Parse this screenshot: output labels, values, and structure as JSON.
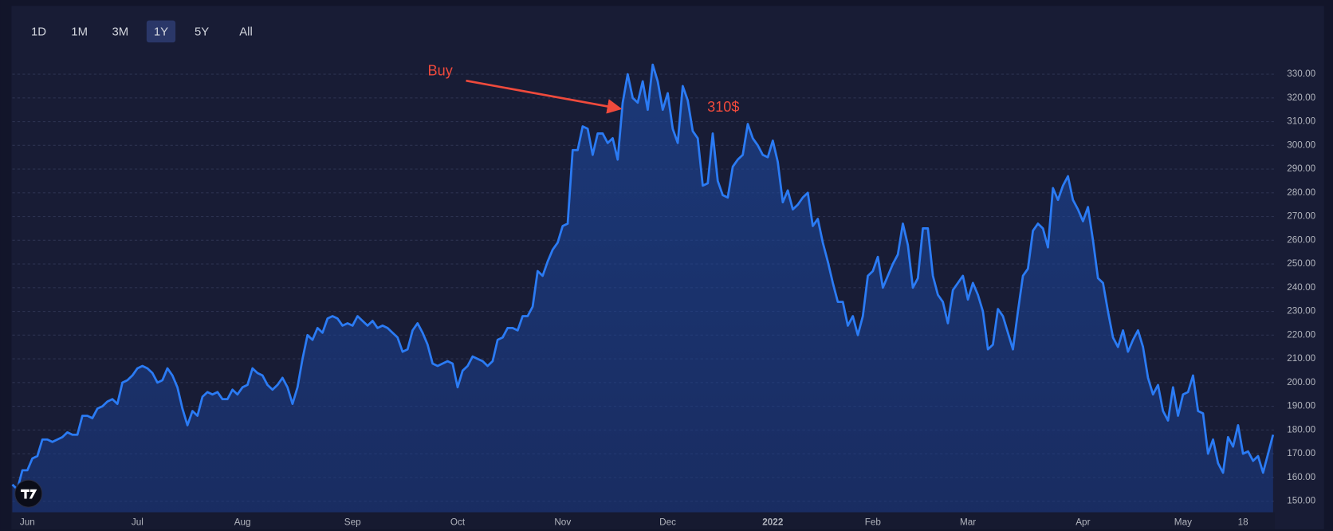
{
  "chart_data": {
    "type": "area",
    "range_buttons": {
      "options": [
        "1D",
        "1M",
        "3M",
        "1Y",
        "5Y",
        "All"
      ],
      "selected": 3
    },
    "annotations": [
      {
        "text": "Buy"
      },
      {
        "text": "310$"
      }
    ],
    "color": "#2b7bf4",
    "grid": true,
    "ylim": [
      145.3,
      338
    ],
    "yticks": [
      {
        "value": 150,
        "label": "150.00"
      },
      {
        "value": 160,
        "label": "160.00"
      },
      {
        "value": 170,
        "label": "170.00"
      },
      {
        "value": 180,
        "label": "180.00"
      },
      {
        "value": 190,
        "label": "190.00"
      },
      {
        "value": 200,
        "label": "200.00"
      },
      {
        "value": 210,
        "label": "210.00"
      },
      {
        "value": 220,
        "label": "220.00"
      },
      {
        "value": 230,
        "label": "230.00"
      },
      {
        "value": 240,
        "label": "240.00"
      },
      {
        "value": 250,
        "label": "250.00"
      },
      {
        "value": 260,
        "label": "260.00"
      },
      {
        "value": 270,
        "label": "270.00"
      },
      {
        "value": 280,
        "label": "280.00"
      },
      {
        "value": 290,
        "label": "290.00"
      },
      {
        "value": 300,
        "label": "300.00"
      },
      {
        "value": 310,
        "label": "310.00"
      },
      {
        "value": 320,
        "label": "320.00"
      },
      {
        "value": 330,
        "label": "330.00"
      }
    ],
    "categories": [
      null,
      null,
      null,
      "Jun",
      null,
      null,
      null,
      null,
      null,
      null,
      null,
      null,
      null,
      null,
      null,
      null,
      null,
      null,
      null,
      null,
      null,
      null,
      null,
      null,
      null,
      "Jul",
      null,
      null,
      null,
      null,
      null,
      null,
      null,
      null,
      null,
      null,
      null,
      null,
      null,
      null,
      null,
      null,
      null,
      null,
      null,
      null,
      "Aug",
      null,
      null,
      null,
      null,
      null,
      null,
      null,
      null,
      null,
      null,
      null,
      null,
      null,
      null,
      null,
      null,
      null,
      null,
      null,
      null,
      null,
      "Sep",
      null,
      null,
      null,
      null,
      null,
      null,
      null,
      null,
      null,
      null,
      null,
      null,
      null,
      null,
      null,
      null,
      null,
      null,
      null,
      null,
      "Oct",
      null,
      null,
      null,
      null,
      null,
      null,
      null,
      null,
      null,
      null,
      null,
      null,
      null,
      null,
      null,
      null,
      null,
      null,
      null,
      null,
      "Nov",
      null,
      null,
      null,
      null,
      null,
      null,
      null,
      null,
      null,
      null,
      null,
      null,
      null,
      null,
      null,
      null,
      null,
      null,
      null,
      null,
      "Dec",
      null,
      null,
      null,
      null,
      null,
      null,
      null,
      null,
      null,
      null,
      null,
      null,
      null,
      null,
      null,
      null,
      null,
      null,
      null,
      null,
      "2022",
      null,
      null,
      null,
      null,
      null,
      null,
      null,
      null,
      null,
      null,
      null,
      null,
      null,
      null,
      null,
      null,
      null,
      null,
      null,
      "Feb",
      null,
      null,
      null,
      null,
      null,
      null,
      null,
      null,
      null,
      null,
      null,
      null,
      null,
      null,
      null,
      null,
      null,
      null,
      "Mar",
      null,
      null,
      null,
      null,
      null,
      null,
      null,
      null,
      null,
      null,
      null,
      null,
      null,
      null,
      null,
      null,
      null,
      null,
      null,
      null,
      null,
      null,
      "Apr",
      null,
      null,
      null,
      null,
      null,
      null,
      null,
      null,
      null,
      null,
      null,
      null,
      null,
      null,
      null,
      null,
      null,
      null,
      null,
      "May",
      null,
      null,
      null,
      null,
      null,
      null,
      null,
      null,
      null,
      null,
      null,
      "18",
      null,
      null,
      null,
      null,
      null,
      null
    ],
    "values": [
      157,
      155,
      163,
      163,
      168,
      169,
      176,
      176,
      175,
      176,
      177,
      179,
      178,
      178,
      186,
      186,
      185,
      189,
      190,
      192,
      193,
      191,
      200,
      201,
      203,
      206,
      207,
      206,
      204,
      200,
      201,
      206,
      203,
      198,
      189,
      182,
      188,
      186,
      194,
      196,
      195,
      196,
      193,
      193,
      197,
      195,
      198,
      199,
      206,
      204,
      203,
      199,
      197,
      199,
      202,
      198,
      191,
      198,
      210,
      220,
      218,
      223,
      221,
      227,
      228,
      227,
      224,
      225,
      224,
      228,
      226,
      224,
      226,
      223,
      224,
      223,
      221,
      219,
      213,
      214,
      222,
      225,
      221,
      216,
      208,
      207,
      208,
      209,
      208,
      198,
      205,
      207,
      211,
      210,
      209,
      207,
      209,
      218,
      219,
      223,
      223,
      222,
      228,
      228,
      232,
      247,
      245,
      251,
      256,
      259,
      266,
      267,
      298,
      298,
      308,
      307,
      296,
      305,
      305,
      301,
      303,
      294,
      318,
      330,
      320,
      318,
      327,
      315,
      334,
      327,
      315,
      322,
      307,
      301,
      325,
      319,
      306,
      303,
      283,
      284,
      305,
      285,
      279,
      278,
      291,
      294,
      296,
      309,
      303,
      300,
      296,
      295,
      302,
      293,
      276,
      281,
      273,
      275,
      278,
      280,
      266,
      269,
      259,
      251,
      242,
      234,
      234,
      224,
      228,
      220,
      228,
      245,
      247,
      253,
      240,
      245,
      250,
      254,
      267,
      258,
      240,
      244,
      265,
      265,
      245,
      237,
      234,
      225,
      239,
      242,
      245,
      235,
      242,
      237,
      230,
      214,
      216,
      231,
      228,
      221,
      214,
      230,
      245,
      248,
      264,
      267,
      265,
      257,
      282,
      277,
      283,
      287,
      277,
      273,
      268,
      274,
      260,
      244,
      242,
      230,
      219,
      215,
      222,
      213,
      218,
      222,
      215,
      202,
      195,
      199,
      188,
      184,
      198,
      186,
      195,
      196,
      203,
      188,
      187,
      170,
      176,
      166,
      162,
      177,
      173,
      182,
      170,
      171,
      167,
      169,
      162,
      170,
      178
    ]
  }
}
